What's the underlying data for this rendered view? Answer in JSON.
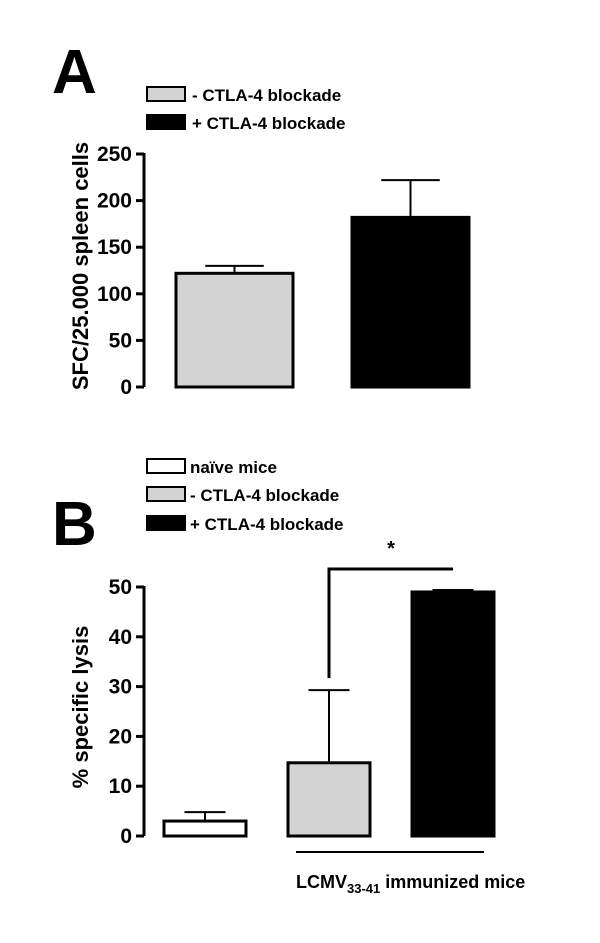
{
  "chart_data": [
    {
      "panel": "A",
      "type": "bar",
      "title": "",
      "xlabel": "",
      "ylabel": "SFC/25.000 spleen cells",
      "ylim": [
        0,
        250
      ],
      "yticks": [
        "0",
        "50",
        "100",
        "150",
        "200",
        "250"
      ],
      "categories": [
        "- CTLA-4 blockade",
        "+ CTLA-4 blockade"
      ],
      "values": [
        122,
        182
      ],
      "errors": [
        8,
        40
      ],
      "colors": [
        "#d3d3d3",
        "#000000"
      ],
      "legend": [
        {
          "label": "- CTLA-4 blockade",
          "color": "#d3d3d3"
        },
        {
          "label": "+ CTLA-4 blockade",
          "color": "#000000"
        }
      ],
      "legend_position": "top-left",
      "grid": false
    },
    {
      "panel": "B",
      "type": "bar",
      "title": "",
      "xlabel": "",
      "ylabel": "% specific lysis",
      "ylim": [
        0,
        50
      ],
      "yticks": [
        "0",
        "10",
        "20",
        "30",
        "40",
        "50"
      ],
      "categories": [
        "naïve mice",
        "- CTLA-4 blockade",
        "+ CTLA-4 blockade"
      ],
      "values": [
        3,
        14.7,
        49
      ],
      "errors": [
        1.8,
        14.6,
        0.4
      ],
      "colors": [
        "#ffffff",
        "#d3d3d3",
        "#000000"
      ],
      "legend": [
        {
          "label": "naïve mice",
          "color": "#ffffff"
        },
        {
          "label": "- CTLA-4 blockade",
          "color": "#d3d3d3"
        },
        {
          "label": "+ CTLA-4 blockade",
          "color": "#000000"
        }
      ],
      "legend_position": "top-left",
      "significance": {
        "between": [
          1,
          2
        ],
        "label": "*"
      },
      "group_label": {
        "main": "LCMV",
        "subscript": "33-41",
        "rest": " immunized mice"
      },
      "grid": false
    }
  ]
}
